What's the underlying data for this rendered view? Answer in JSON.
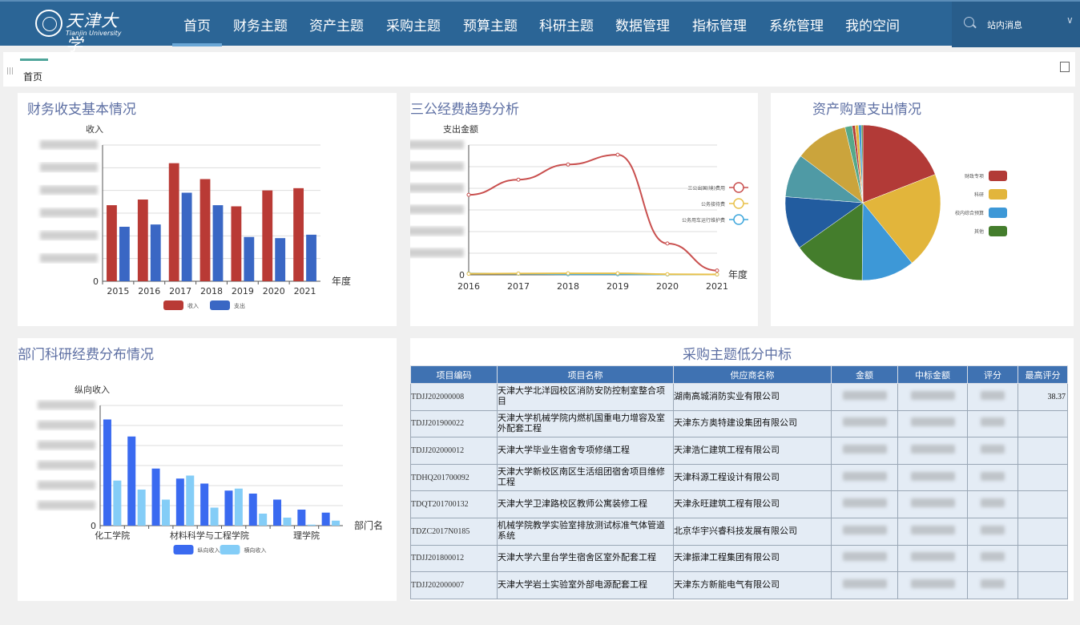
{
  "header": {
    "logo_cn": "天津大学",
    "logo_en": "Tianjin University",
    "nav": [
      "首页",
      "财务主题",
      "资产主题",
      "采购主题",
      "预算主题",
      "科研主题",
      "数据管理",
      "指标管理",
      "系统管理",
      "我的空间"
    ],
    "active_nav": "首页",
    "message_label": "站内消息",
    "search_icon": "search-icon",
    "dropdown_icon": "chevron-down-icon"
  },
  "tabs": {
    "items": [
      "首页"
    ]
  },
  "colors": {
    "header": "#2b6596",
    "title": "#5d6fa3",
    "red": "#b93a35",
    "blue": "#3a67c4"
  },
  "chart_data": [
    {
      "id": "finance",
      "type": "bar",
      "title": "财务收支基本情况",
      "ylabel": "收入",
      "xlabel": "年度",
      "categories": [
        "2015",
        "2016",
        "2017",
        "2018",
        "2019",
        "2020",
        "2021"
      ],
      "ylim": [
        0,
        6
      ],
      "yticks_visible": [
        "0"
      ],
      "grid": true,
      "legend": "bottom",
      "series": [
        {
          "name": "收入",
          "color": "#b93a35",
          "values": [
            3.35,
            3.6,
            5.2,
            4.5,
            3.3,
            4.0,
            4.1
          ]
        },
        {
          "name": "支出",
          "color": "#3a67c4",
          "values": [
            2.4,
            2.5,
            3.9,
            3.35,
            1.95,
            1.9,
            2.05
          ]
        }
      ]
    },
    {
      "id": "sangong",
      "type": "line",
      "title": "三公经费趋势分析",
      "ylabel": "支出金额",
      "xlabel": "年度",
      "categories": [
        "2016",
        "2017",
        "2018",
        "2019",
        "2020",
        "2021"
      ],
      "ylim": [
        0,
        6
      ],
      "yticks_visible": [
        "0"
      ],
      "grid": true,
      "legend": "right",
      "series": [
        {
          "name": "三公出国(境)费用",
          "color": "#c9504f",
          "values": [
            3.7,
            4.4,
            5.1,
            5.55,
            1.45,
            0.2
          ]
        },
        {
          "name": "公务接待费",
          "color": "#e8c14a",
          "values": [
            0.05,
            0.06,
            0.07,
            0.07,
            0.03,
            0.02
          ]
        },
        {
          "name": "公务用车运行维护费",
          "color": "#3fa7dc",
          "values": [
            0.06,
            0.05,
            0.03,
            0.03,
            0.02,
            0.02
          ]
        }
      ]
    },
    {
      "id": "asset",
      "type": "pie",
      "title": "资产购置支出情况",
      "legend": "right",
      "legend_items": [
        {
          "name": "财政专项",
          "color": "#b23a37"
        },
        {
          "name": "科研",
          "color": "#e2b53b"
        },
        {
          "name": "校内综合预算",
          "color": "#3d98d7"
        },
        {
          "name": "其他",
          "color": "#447d2c"
        }
      ],
      "slices": [
        {
          "value": 19,
          "color": "#b23a37"
        },
        {
          "value": 20,
          "color": "#e2b53b"
        },
        {
          "value": 11,
          "color": "#3d98d7"
        },
        {
          "value": 15,
          "color": "#447d2c"
        },
        {
          "value": 11,
          "color": "#225c9f"
        },
        {
          "value": 9,
          "color": "#4f9aa5"
        },
        {
          "value": 11,
          "color": "#cba43c"
        },
        {
          "value": 1.5,
          "color": "#55a88a"
        },
        {
          "value": 0.6,
          "color": "#b23a37"
        },
        {
          "value": 0.7,
          "color": "#e2b53b"
        },
        {
          "value": 0.6,
          "color": "#3d98d7"
        },
        {
          "value": 0.3,
          "color": "#447d2c"
        }
      ]
    },
    {
      "id": "research",
      "type": "bar",
      "title": "部门科研经费分布情况",
      "ylabel": "纵向收入",
      "xlabel": "部门名",
      "categories": [
        "化工学院",
        "",
        "",
        "",
        "材料科学与工程学院",
        "",
        "",
        "",
        "理学院",
        ""
      ],
      "ylim": [
        0,
        6
      ],
      "yticks_visible": [
        "0"
      ],
      "grid": true,
      "legend": "bottom",
      "series": [
        {
          "name": "纵向收入",
          "color": "#3a6af0",
          "values": [
            5.3,
            4.45,
            2.85,
            2.35,
            2.1,
            1.75,
            1.6,
            1.3,
            0.8,
            0.65
          ]
        },
        {
          "name": "横向收入",
          "color": "#84cdf7",
          "values": [
            2.25,
            1.8,
            1.3,
            2.5,
            0.9,
            1.85,
            0.6,
            0.4,
            0.05,
            0.25
          ]
        }
      ]
    }
  ],
  "procurement": {
    "title": "采购主题低分中标",
    "columns": [
      "项目编码",
      "项目名称",
      "供应商名称",
      "金额",
      "中标金额",
      "评分",
      "最高评分"
    ],
    "rows": [
      {
        "code": "TDJJ202000008",
        "name": "天津大学北洋园校区消防安防控制室整合项目",
        "supplier": "湖南高城消防实业有限公司",
        "max_score": "38.37"
      },
      {
        "code": "TDJJ201900022",
        "name": "天津大学机械学院内燃机国重电力增容及室外配套工程",
        "supplier": "天津东方奥特建设集团有限公司",
        "max_score": ""
      },
      {
        "code": "TDJJ202000012",
        "name": "天津大学毕业生宿舍专项修缮工程",
        "supplier": "天津浩仁建筑工程有限公司",
        "max_score": ""
      },
      {
        "code": "TDHQ201700092",
        "name": "天津大学新校区南区生活组团宿舍项目维修工程",
        "supplier": "天津科源工程设计有限公司",
        "max_score": ""
      },
      {
        "code": "TDQT201700132",
        "name": "天津大学卫津路校区教师公寓装修工程",
        "supplier": "天津永旺建筑工程有限公司",
        "max_score": ""
      },
      {
        "code": "TDZC2017N0185",
        "name": "机械学院教学实验室排放测试标准气体管道系统",
        "supplier": "北京华宇兴睿科技发展有限公司",
        "max_score": ""
      },
      {
        "code": "TDJJ201800012",
        "name": "天津大学六里台学生宿舍区室外配套工程",
        "supplier": "天津振津工程集团有限公司",
        "max_score": ""
      },
      {
        "code": "TDJJ202000007",
        "name": "天津大学岩土实验室外部电源配套工程",
        "supplier": "天津东方新能电气有限公司",
        "max_score": ""
      }
    ]
  }
}
